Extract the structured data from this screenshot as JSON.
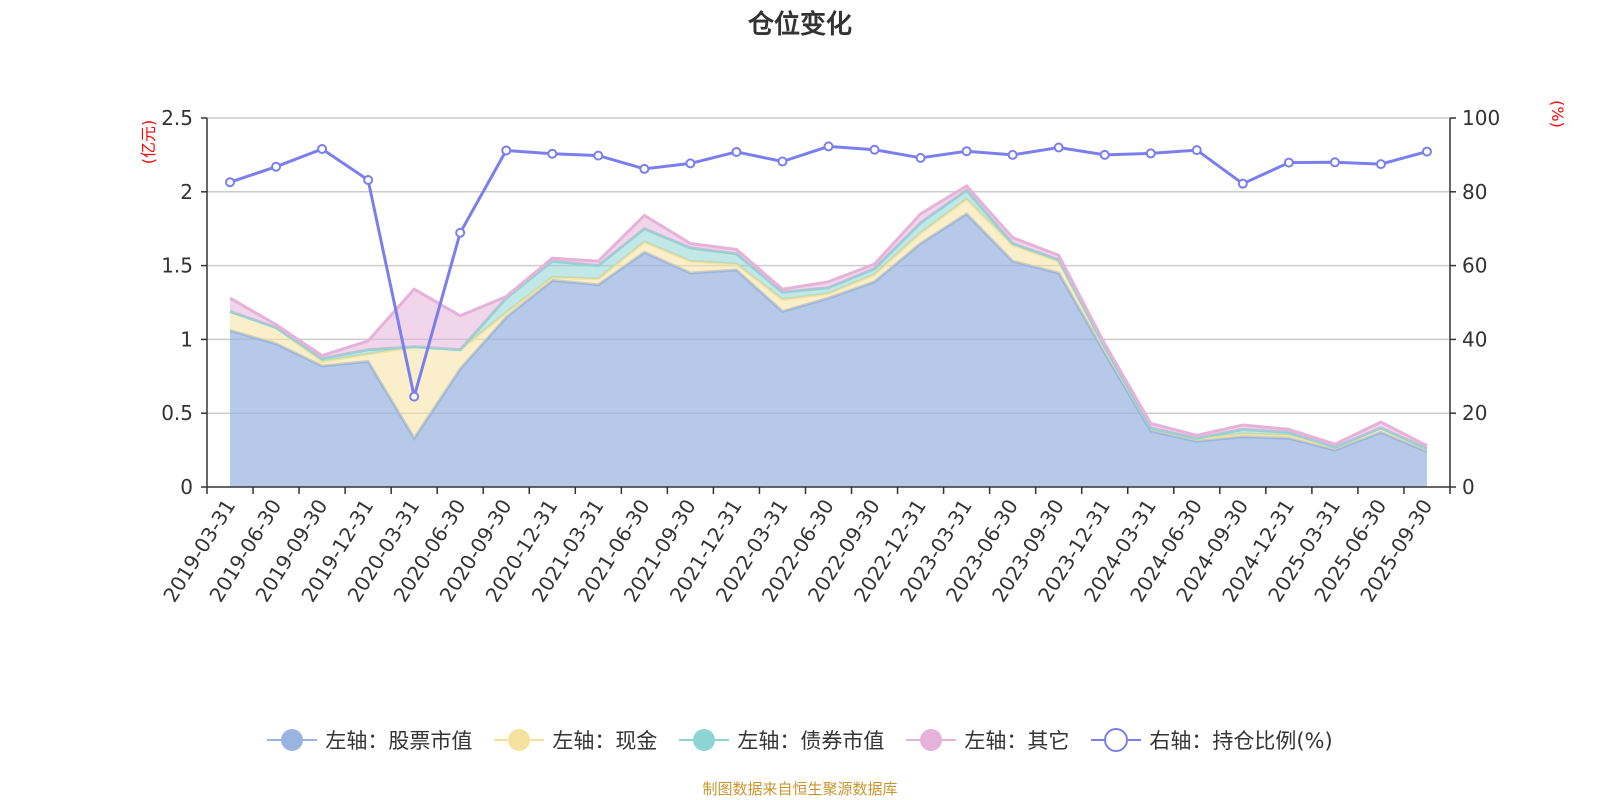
{
  "title": "仓位变化",
  "source": "制图数据来自恒生聚源数据库",
  "colors": {
    "stock": "#9ab4e0",
    "cash": "#f5e29e",
    "bond": "#8fd3d3",
    "other": "#e6b2d9",
    "ratio": "#7b7fee",
    "unit": "#ff0000"
  },
  "legend": [
    {
      "label": "左轴：股票市值",
      "color": "#9ab4e0",
      "marker": "filled"
    },
    {
      "label": "左轴：现金",
      "color": "#f5e29e",
      "marker": "filled"
    },
    {
      "label": "左轴：债券市值",
      "color": "#8fd3d3",
      "marker": "filled"
    },
    {
      "label": "左轴：其它",
      "color": "#e6b2d9",
      "marker": "filled"
    },
    {
      "label": "右轴：持仓比例(%)",
      "color": "#7b7fee",
      "marker": "hollow"
    }
  ],
  "chart_data": {
    "type": "area",
    "title": "仓位变化",
    "categories": [
      "2019-03-31",
      "2019-06-30",
      "2019-09-30",
      "2019-12-31",
      "2020-03-31",
      "2020-06-30",
      "2020-09-30",
      "2020-12-31",
      "2021-03-31",
      "2021-06-30",
      "2021-09-30",
      "2021-12-31",
      "2022-03-31",
      "2022-06-30",
      "2022-09-30",
      "2022-12-31",
      "2023-03-31",
      "2023-06-30",
      "2023-09-30",
      "2023-12-31",
      "2024-03-31",
      "2024-06-30",
      "2024-09-30",
      "2024-12-31",
      "2025-03-31",
      "2025-06-30",
      "2025-09-30"
    ],
    "left_axis": {
      "label": "(亿元)",
      "range": [
        0,
        2.5
      ],
      "ticks": [
        0,
        0.5,
        1,
        1.5,
        2,
        2.5
      ],
      "tick_labels": [
        "0",
        "0.5",
        "1",
        "1.5",
        "2",
        "2.5"
      ]
    },
    "right_axis": {
      "label": "(%)",
      "range": [
        0,
        100
      ],
      "ticks": [
        0,
        20,
        40,
        60,
        80,
        100
      ],
      "tick_labels": [
        "0",
        "20",
        "40",
        "60",
        "80",
        "100"
      ]
    },
    "stacked_series": [
      {
        "name": "左轴：股票市值",
        "axis": "left",
        "values": [
          1.06,
          0.97,
          0.82,
          0.85,
          0.33,
          0.8,
          1.15,
          1.4,
          1.37,
          1.59,
          1.45,
          1.47,
          1.19,
          1.28,
          1.39,
          1.65,
          1.85,
          1.53,
          1.45,
          0.91,
          0.38,
          0.31,
          0.34,
          0.33,
          0.25,
          0.37,
          0.24
        ]
      },
      {
        "name": "左轴：现金",
        "axis": "left",
        "values": [
          0.13,
          0.11,
          0.03,
          0.05,
          0.62,
          0.13,
          0.03,
          0.02,
          0.04,
          0.07,
          0.08,
          0.04,
          0.08,
          0.03,
          0.05,
          0.07,
          0.1,
          0.11,
          0.08,
          0.03,
          0.02,
          0.02,
          0.02,
          0.02,
          0.02,
          0.03,
          0.02
        ]
      },
      {
        "name": "左轴：债券市值",
        "axis": "left",
        "values": [
          0.0,
          0.0,
          0.02,
          0.03,
          0.0,
          0.0,
          0.1,
          0.11,
          0.09,
          0.09,
          0.09,
          0.07,
          0.05,
          0.04,
          0.04,
          0.07,
          0.06,
          0.01,
          0.01,
          0.01,
          0.0,
          0.0,
          0.03,
          0.02,
          0.0,
          0.0,
          0.0
        ]
      },
      {
        "name": "左轴：其它",
        "axis": "left",
        "values": [
          0.09,
          0.02,
          0.02,
          0.06,
          0.39,
          0.23,
          0.01,
          0.02,
          0.03,
          0.09,
          0.03,
          0.03,
          0.02,
          0.04,
          0.03,
          0.06,
          0.03,
          0.04,
          0.03,
          0.02,
          0.03,
          0.02,
          0.03,
          0.02,
          0.02,
          0.04,
          0.02
        ]
      }
    ],
    "line_series": {
      "name": "右轴：持仓比例(%)",
      "axis": "right",
      "values": [
        82.6,
        86.8,
        91.6,
        83.2,
        24.5,
        68.9,
        91.2,
        90.3,
        89.8,
        86.2,
        87.7,
        90.8,
        88.2,
        92.3,
        91.4,
        89.2,
        91.0,
        90.0,
        92.0,
        90.0,
        90.4,
        91.3,
        82.2,
        87.9,
        88.0,
        87.5,
        90.9
      ]
    }
  }
}
